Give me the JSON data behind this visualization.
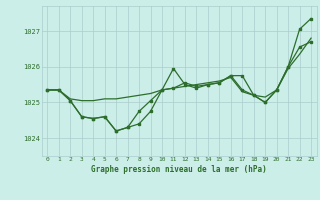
{
  "background_color": "#cceee8",
  "grid_color": "#aacccc",
  "line_color": "#2d6e2d",
  "title": "Graphe pression niveau de la mer (hPa)",
  "xlim": [
    -0.5,
    23.5
  ],
  "ylim": [
    1023.5,
    1027.7
  ],
  "yticks": [
    1024,
    1025,
    1026,
    1027
  ],
  "xticks": [
    0,
    1,
    2,
    3,
    4,
    5,
    6,
    7,
    8,
    9,
    10,
    11,
    12,
    13,
    14,
    15,
    16,
    17,
    18,
    19,
    20,
    21,
    22,
    23
  ],
  "series1_x": [
    0,
    1,
    2,
    3,
    4,
    5,
    6,
    7,
    8,
    9,
    10,
    11,
    12,
    13,
    14,
    15,
    16,
    17,
    18,
    19,
    20,
    21,
    22,
    23
  ],
  "series1_y": [
    1025.35,
    1025.35,
    1025.05,
    1024.6,
    1024.55,
    1024.6,
    1024.2,
    1024.3,
    1024.75,
    1025.05,
    1025.35,
    1025.95,
    1025.5,
    1025.4,
    1025.5,
    1025.55,
    1025.75,
    1025.35,
    1025.2,
    1025.0,
    1025.35,
    1026.0,
    1026.55,
    1026.7
  ],
  "series2_x": [
    0,
    1,
    2,
    3,
    4,
    5,
    6,
    7,
    8,
    9,
    10,
    11,
    12,
    13,
    14,
    15,
    16,
    17,
    18,
    19,
    20,
    21,
    22,
    23
  ],
  "series2_y": [
    1025.35,
    1025.35,
    1025.05,
    1024.6,
    1024.55,
    1024.6,
    1024.2,
    1024.3,
    1024.4,
    1024.75,
    1025.35,
    1025.4,
    1025.55,
    1025.45,
    1025.5,
    1025.55,
    1025.75,
    1025.75,
    1025.2,
    1025.0,
    1025.35,
    1026.0,
    1027.05,
    1027.35
  ],
  "series3_x": [
    0,
    1,
    2,
    3,
    4,
    5,
    6,
    7,
    8,
    9,
    10,
    11,
    12,
    13,
    14,
    15,
    16,
    17,
    18,
    19,
    20,
    21,
    22,
    23
  ],
  "series3_y": [
    1025.35,
    1025.35,
    1025.1,
    1025.05,
    1025.05,
    1025.1,
    1025.1,
    1025.15,
    1025.2,
    1025.25,
    1025.35,
    1025.4,
    1025.45,
    1025.5,
    1025.55,
    1025.6,
    1025.7,
    1025.3,
    1025.2,
    1025.15,
    1025.35,
    1025.95,
    1026.35,
    1026.8
  ]
}
